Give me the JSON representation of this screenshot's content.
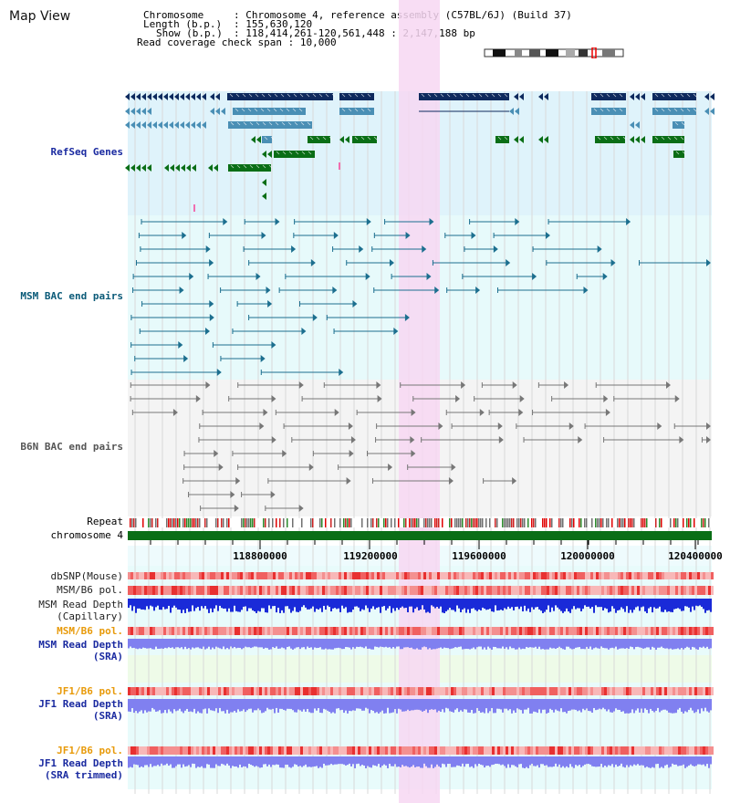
{
  "panel": {
    "title": "Map View"
  },
  "info": {
    "chromosome_key": "Chromosome",
    "chromosome_val": "Chromosome 4, reference assembly (C57BL/6J) (Build 37)",
    "length_key": "Length (b.p.)",
    "length_val": "155,630,120",
    "show_key": "Show (b.p.)",
    "show_val": "118,414,261-120,561,448 : 2,147,188 bp",
    "coverage_key": "Read coverage check span",
    "coverage_val": "10,000"
  },
  "tracks": {
    "refseq": "RefSeq Genes",
    "msm_bac": "MSM BAC end pairs",
    "b6n_bac": "B6N BAC end pairs",
    "repeat": "Repeat",
    "chromosome": "chromosome 4",
    "dbsnp": "dbSNP(Mouse)",
    "msm_b6_pol": "MSM/B6 pol.",
    "msm_depth_cap_1": "MSM Read Depth",
    "msm_depth_cap_2": "(Capillary)",
    "msm_b6_pol_sra": "MSM/B6 pol.",
    "msm_depth_sra_1": "MSM Read Depth",
    "msm_depth_sra_2": "(SRA)",
    "jf1_b6_pol": "JF1/B6 pol.",
    "jf1_depth_1": "JF1 Read Depth",
    "jf1_depth_2": "(SRA)",
    "jf1_b6_pol_trim": "JF1/B6 pol.",
    "jf1_trim_1": "JF1 Read Depth",
    "jf1_trim_2": "(SRA trimmed)"
  },
  "axis": {
    "ticks": [
      "118800000",
      "119200000",
      "119600000",
      "120000000",
      "120400000"
    ]
  },
  "colors": {
    "refseq_bg": "#dff3fb",
    "gene_navy": "#0e2a5e",
    "gene_steel": "#4a8fb5",
    "gene_green": "#0a6e16",
    "bac_teal": "#1c6f8f",
    "bac_gray": "#777777",
    "highlight": "#f7d7f2",
    "chromosome_bar": "#0a6e16",
    "depth_blue": "#1a2ad8",
    "depth_light": "#8080f0"
  }
}
